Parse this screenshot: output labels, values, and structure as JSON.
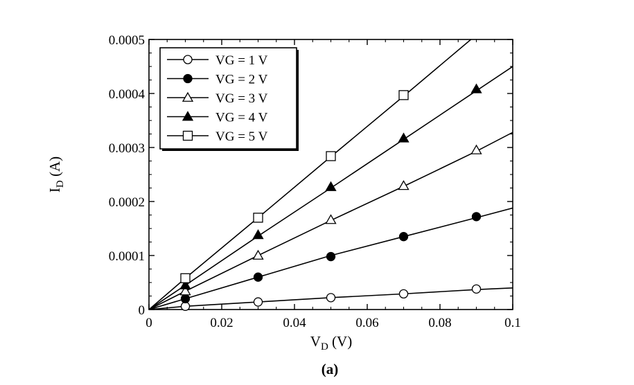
{
  "chart_data": {
    "type": "line",
    "caption": "(a)",
    "xlabel": {
      "main": "V",
      "sub": "D",
      "unit": " (V)"
    },
    "ylabel": {
      "main": "I",
      "sub": "D",
      "unit": " (A)"
    },
    "xlim": [
      0,
      0.1
    ],
    "ylim": [
      0,
      0.0005
    ],
    "xticks": [
      0,
      0.02,
      0.04,
      0.06,
      0.08,
      0.1
    ],
    "xtick_labels": [
      "0",
      "0.02",
      "0.04",
      "0.06",
      "0.08",
      "0.1"
    ],
    "yticks": [
      0,
      0.0001,
      0.0002,
      0.0003,
      0.0004,
      0.0005
    ],
    "ytick_labels": [
      "0",
      "0.0001",
      "0.0002",
      "0.0003",
      "0.0004",
      "0.0005"
    ],
    "grid": false,
    "legend_position": "top-left",
    "series": [
      {
        "name": "VG = 1 V",
        "marker": "circle-open",
        "line": {
          "x": [
            0,
            0.01,
            0.03,
            0.05,
            0.07,
            0.09,
            0.1
          ],
          "y": [
            0,
            6e-06,
            1.4e-05,
            2.2e-05,
            2.9e-05,
            3.7e-05,
            4e-05
          ]
        },
        "points": {
          "x": [
            0.01,
            0.03,
            0.05,
            0.07,
            0.09
          ],
          "y": [
            6e-06,
            1.4e-05,
            2.2e-05,
            2.9e-05,
            3.8e-05
          ]
        }
      },
      {
        "name": "VG = 2 V",
        "marker": "circle-filled",
        "line": {
          "x": [
            0,
            0.01,
            0.03,
            0.05,
            0.07,
            0.09,
            0.1
          ],
          "y": [
            0,
            2e-05,
            6e-05,
            0.0001,
            0.000135,
            0.00017,
            0.000188
          ]
        },
        "points": {
          "x": [
            0.01,
            0.03,
            0.05,
            0.07,
            0.09
          ],
          "y": [
            2e-05,
            6e-05,
            9.8e-05,
            0.000135,
            0.000172
          ]
        }
      },
      {
        "name": "VG = 3 V",
        "marker": "triangle-open",
        "line": {
          "x": [
            0,
            0.01,
            0.03,
            0.05,
            0.07,
            0.09,
            0.1
          ],
          "y": [
            0,
            3.4e-05,
            0.0001,
            0.000165,
            0.000228,
            0.000293,
            0.000328
          ]
        },
        "points": {
          "x": [
            0.01,
            0.03,
            0.05,
            0.07,
            0.09
          ],
          "y": [
            3.4e-05,
            0.0001,
            0.000166,
            0.000229,
            0.000295
          ]
        }
      },
      {
        "name": "VG = 4 V",
        "marker": "triangle-filled",
        "line": {
          "x": [
            0,
            0.01,
            0.03,
            0.05,
            0.07,
            0.09,
            0.1
          ],
          "y": [
            0,
            4.5e-05,
            0.000136,
            0.000225,
            0.000315,
            0.000405,
            0.00045
          ]
        },
        "points": {
          "x": [
            0.01,
            0.03,
            0.05,
            0.07,
            0.09
          ],
          "y": [
            4.5e-05,
            0.000138,
            0.000227,
            0.000317,
            0.000408
          ]
        }
      },
      {
        "name": "VG = 5 V",
        "marker": "square-open",
        "line": {
          "x": [
            0,
            0.01,
            0.03,
            0.05,
            0.07,
            0.0885
          ],
          "y": [
            0,
            5.8e-05,
            0.00017,
            0.000283,
            0.000395,
            0.0005
          ]
        },
        "points": {
          "x": [
            0.01,
            0.03,
            0.05,
            0.07
          ],
          "y": [
            5.8e-05,
            0.00017,
            0.000284,
            0.000397
          ]
        }
      }
    ]
  }
}
